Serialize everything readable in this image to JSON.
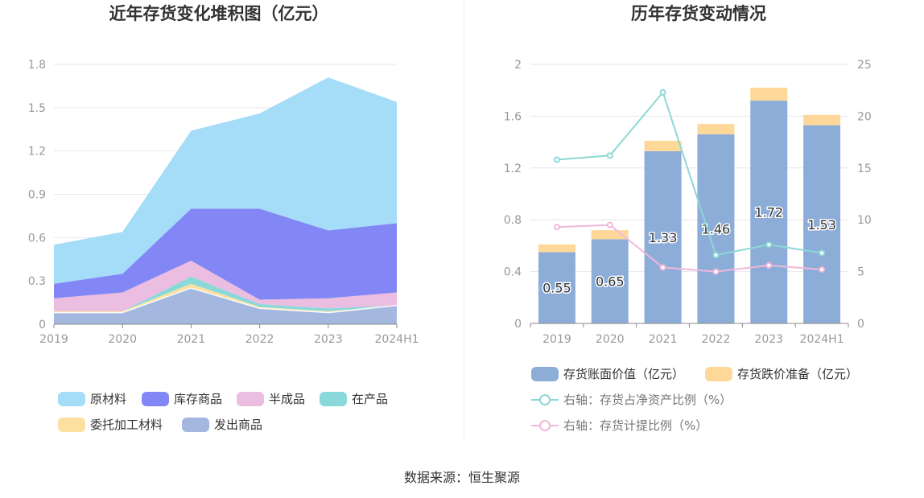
{
  "source_text": "数据来源：恒生聚源",
  "colors": {
    "raw": "#a5ddf9",
    "stock": "#8387f6",
    "semi": "#ebbde0",
    "wip": "#8bd8da",
    "consign": "#fde0a0",
    "shipped": "#a3b7df",
    "book": "#8dadd9",
    "provision": "#fdd899",
    "ratio_net": "#8dd8d6",
    "ratio_prov": "#f0b7dc",
    "axis": "#999999",
    "grid": "#e6e6ee"
  },
  "chart_data": [
    {
      "type": "area",
      "stacked": true,
      "title": "近年存货变化堆积图（亿元）",
      "x": [
        "2019",
        "2020",
        "2021",
        "2022",
        "2023",
        "2024H1"
      ],
      "ylim": [
        0,
        1.8
      ],
      "yticks": [
        "0",
        "0.3",
        "0.6",
        "0.9",
        "1.2",
        "1.5",
        "1.8"
      ],
      "grid": true,
      "legend_position": "bottom",
      "series": [
        {
          "name": "发出商品",
          "key": "shipped",
          "values": [
            0.08,
            0.08,
            0.25,
            0.11,
            0.08,
            0.13
          ]
        },
        {
          "name": "委托加工材料",
          "key": "consign",
          "values": [
            0.01,
            0.01,
            0.03,
            0.01,
            0.01,
            0.0
          ]
        },
        {
          "name": "在产品",
          "key": "wip",
          "values": [
            0.0,
            0.0,
            0.05,
            0.02,
            0.02,
            0.0
          ]
        },
        {
          "name": "半成品",
          "key": "semi",
          "values": [
            0.09,
            0.13,
            0.11,
            0.03,
            0.07,
            0.09
          ]
        },
        {
          "name": "库存商品",
          "key": "stock",
          "values": [
            0.1,
            0.13,
            0.36,
            0.63,
            0.47,
            0.48
          ]
        },
        {
          "name": "原材料",
          "key": "raw",
          "values": [
            0.27,
            0.29,
            0.54,
            0.66,
            1.06,
            0.84
          ]
        }
      ],
      "legend_order": [
        "原材料",
        "库存商品",
        "半成品",
        "在产品",
        "委托加工材料",
        "发出商品"
      ]
    },
    {
      "type": "bar",
      "title": "历年存货变动情况",
      "categories": [
        "2019",
        "2020",
        "2021",
        "2022",
        "2023",
        "2024H1"
      ],
      "ylim": [
        0,
        2
      ],
      "yticks": [
        "0",
        "0.4",
        "0.8",
        "1.2",
        "1.6",
        "2"
      ],
      "y2lim": [
        0,
        25
      ],
      "y2ticks": [
        "0",
        "5",
        "10",
        "15",
        "20",
        "25"
      ],
      "grid": true,
      "legend_position": "bottom",
      "series": [
        {
          "name": "存货账面价值（亿元）",
          "key": "book",
          "kind": "bar",
          "axis": "left",
          "values": [
            0.55,
            0.65,
            1.33,
            1.46,
            1.72,
            1.53
          ],
          "labels": [
            "0.55",
            "0.65",
            "1.33",
            "1.46",
            "1.72",
            "1.53"
          ]
        },
        {
          "name": "存货跌价准备（亿元）",
          "key": "provision",
          "kind": "bar",
          "axis": "left",
          "values": [
            0.06,
            0.07,
            0.08,
            0.08,
            0.1,
            0.08
          ]
        },
        {
          "name": "右轴：存货占净资产比例（%）",
          "key": "ratio_net",
          "kind": "line",
          "axis": "right",
          "values": [
            15.8,
            16.2,
            22.3,
            6.6,
            7.6,
            6.8
          ]
        },
        {
          "name": "右轴：存货计提比例（%）",
          "key": "ratio_prov",
          "kind": "line",
          "axis": "right",
          "values": [
            9.3,
            9.5,
            5.4,
            5.0,
            5.6,
            5.2
          ]
        }
      ]
    }
  ]
}
